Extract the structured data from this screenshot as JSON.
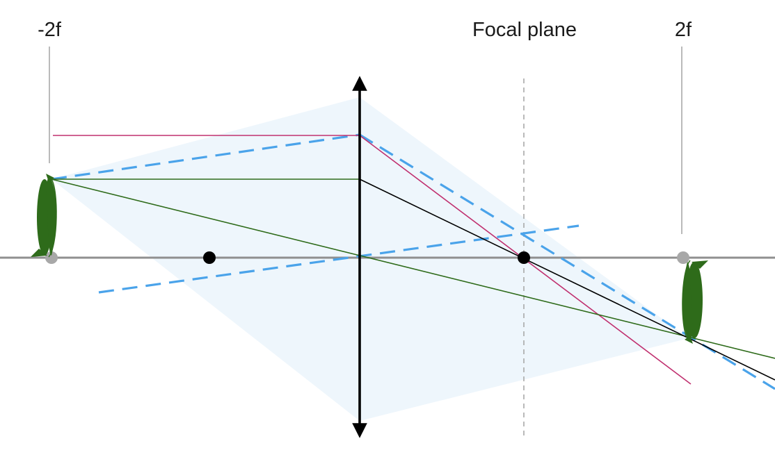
{
  "labels": {
    "neg_2f": "-2f",
    "focal_plane": "Focal plane",
    "pos_2f": "2f"
  },
  "colors": {
    "background": "#ffffff",
    "optical_axis": "#8f8f8f",
    "lens": "#000000",
    "light_cone": "#eef6fc",
    "ray_parallel": "#c0306f",
    "ray_green": "#2e6b1a",
    "ray_black": "#000000",
    "ray_dashed": "#4aa3ea",
    "focal_plane_line": "#a8a8a8",
    "marker_line": "#a8a8a8",
    "focal_point": "#000000",
    "object_point": "#a8a8a8",
    "penguin": "#2e6b1a"
  },
  "icons": {
    "object": "penguin-icon",
    "image": "inverted-penguin-icon"
  }
}
